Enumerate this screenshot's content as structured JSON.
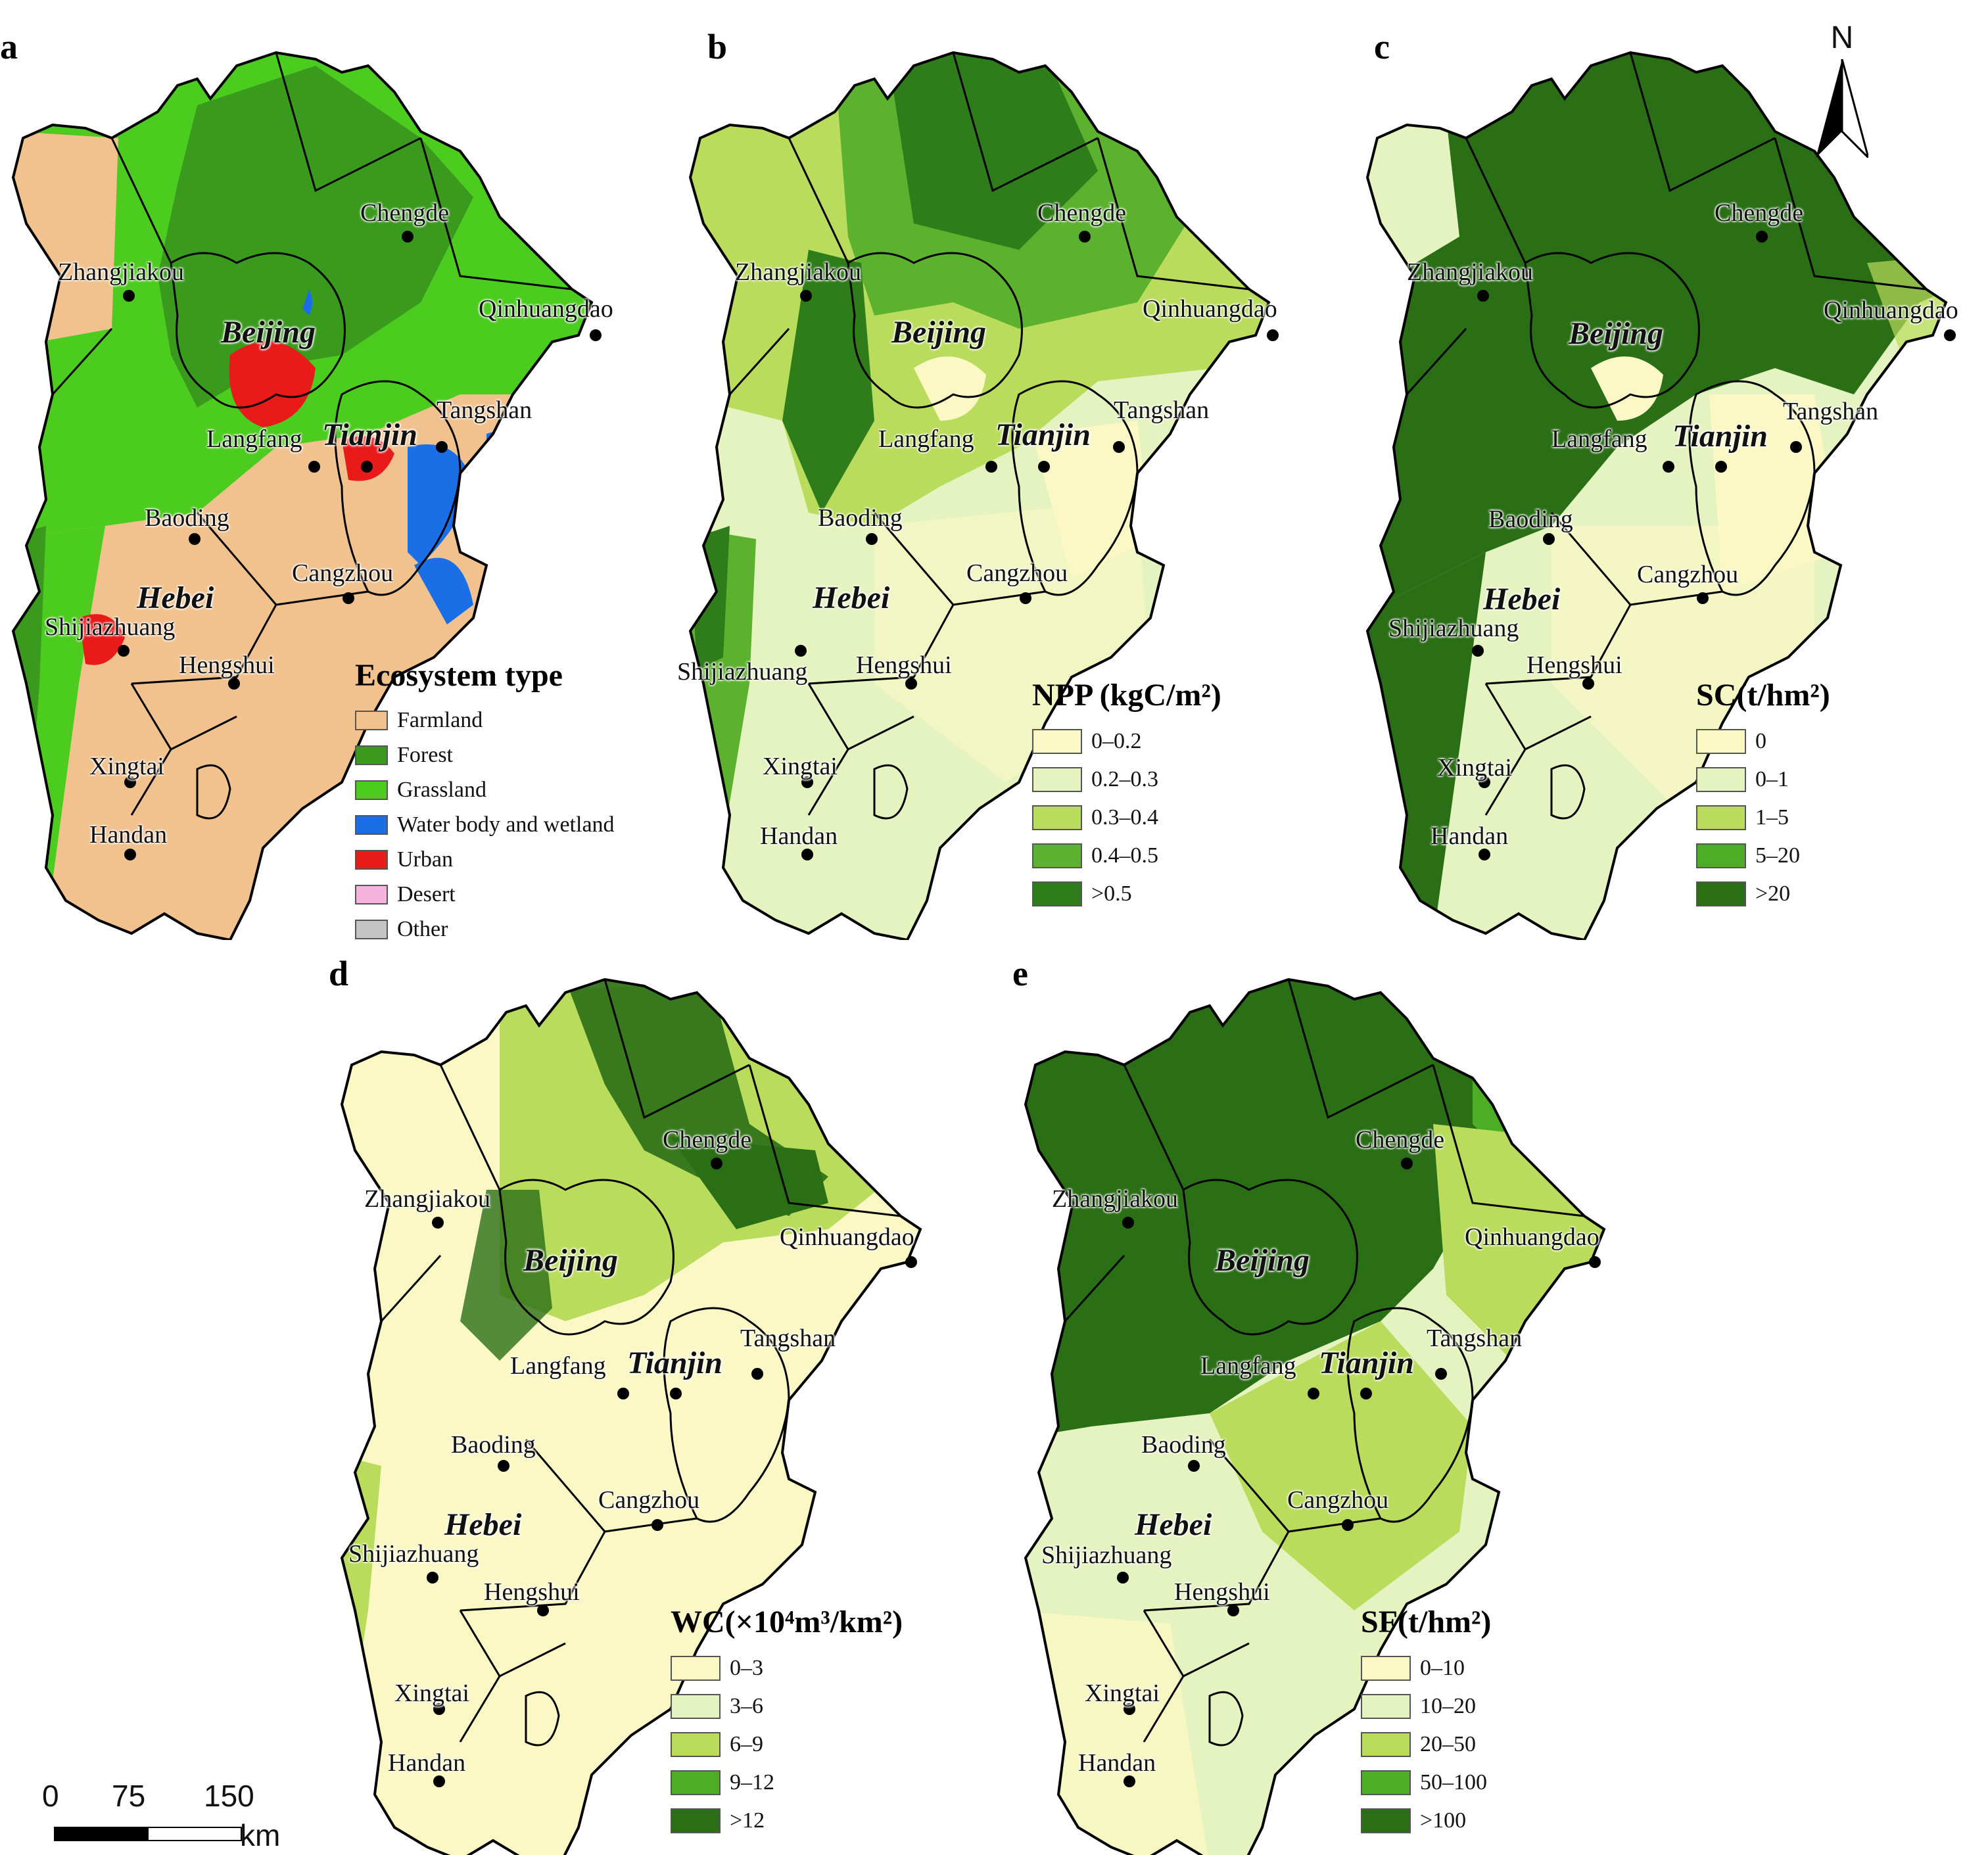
{
  "panels": {
    "a": {
      "label": "a",
      "legend_title": "Ecosystem type",
      "legend": [
        {
          "label": "Farmland",
          "color": "#f2c28e"
        },
        {
          "label": "Forest",
          "color": "#3a9a1e"
        },
        {
          "label": "Grassland",
          "color": "#4ccc1e"
        },
        {
          "label": "Water body and wetland",
          "color": "#1a6ee6"
        },
        {
          "label": "Urban",
          "color": "#e81a1a"
        },
        {
          "label": "Desert",
          "color": "#f5b3de"
        },
        {
          "label": "Other",
          "color": "#c4c4c4"
        }
      ]
    },
    "b": {
      "label": "b",
      "legend_title": "NPP (kgC/m²)",
      "legend": [
        {
          "label": "0–0.2",
          "color": "#fbf8c6"
        },
        {
          "label": "0.2–0.3",
          "color": "#e4f3bf"
        },
        {
          "label": "0.3–0.4",
          "color": "#b9dc5c"
        },
        {
          "label": "0.4–0.5",
          "color": "#5cb22e"
        },
        {
          "label": ">0.5",
          "color": "#2e7d1a"
        }
      ]
    },
    "c": {
      "label": "c",
      "legend_title": "SC(t/hm²)",
      "legend": [
        {
          "label": "0",
          "color": "#fbf8c6"
        },
        {
          "label": "0–1",
          "color": "#e4f3bf"
        },
        {
          "label": "1–5",
          "color": "#b9dc5c"
        },
        {
          "label": "5–20",
          "color": "#4cae24"
        },
        {
          "label": ">20",
          "color": "#2a6e16"
        }
      ]
    },
    "d": {
      "label": "d",
      "legend_title": "WC(×10⁴m³/km²)",
      "legend": [
        {
          "label": "0–3",
          "color": "#fbf8c6"
        },
        {
          "label": "3–6",
          "color": "#e4f3bf"
        },
        {
          "label": "6–9",
          "color": "#b9dc5c"
        },
        {
          "label": "9–12",
          "color": "#4cae24"
        },
        {
          "label": ">12",
          "color": "#2a6e16"
        }
      ]
    },
    "e": {
      "label": "e",
      "legend_title": "SF(t/hm²)",
      "legend": [
        {
          "label": "0–10",
          "color": "#fbf8c6"
        },
        {
          "label": "10–20",
          "color": "#e4f3bf"
        },
        {
          "label": "20–50",
          "color": "#b9dc5c"
        },
        {
          "label": "50–100",
          "color": "#4cae24"
        },
        {
          "label": ">100",
          "color": "#2a6e16"
        }
      ]
    }
  },
  "cities": {
    "chengde": "Chengde",
    "zhangjiakou": "Zhangjiakou",
    "qinhuangdao": "Qinhuangdao",
    "tangshan": "Tangshan",
    "langfang": "Langfang",
    "baoding": "Baoding",
    "cangzhou": "Cangzhou",
    "shijiazhuang": "Shijiazhuang",
    "hengshui": "Hengshui",
    "xingtai": "Xingtai",
    "handan": "Handan"
  },
  "provinces": {
    "beijing": "Beijing",
    "tianjin": "Tianjin",
    "hebei": "Hebei"
  },
  "north_arrow": "N",
  "scale_bar": {
    "ticks": [
      "0",
      "75",
      "150"
    ],
    "unit": "km"
  }
}
